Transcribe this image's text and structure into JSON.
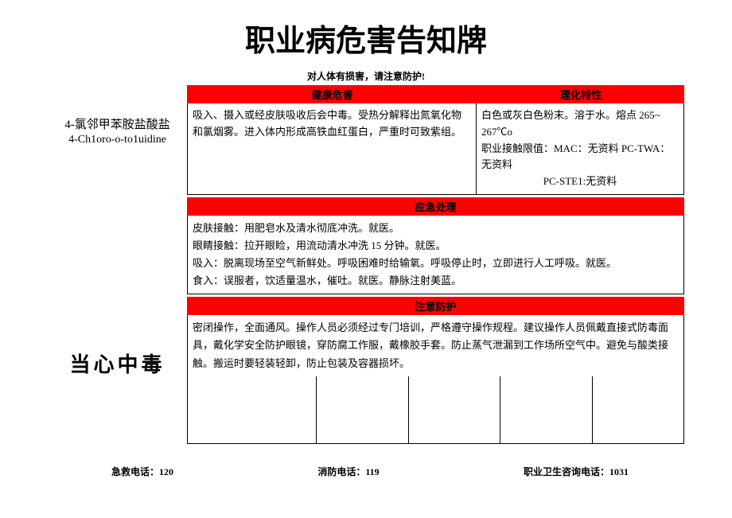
{
  "title": "职业病危害告知牌",
  "subtitle": "对人体有损害，请注意防护!",
  "chemical": {
    "name_cn": "4-氯邻甲苯胺盐酸盐",
    "name_en": "4-Ch1oro-o-to1uidine"
  },
  "headers": {
    "hazard": "健康危害",
    "properties": "理化特性",
    "emergency": "应急处理",
    "protection": "注意防护"
  },
  "hazard_text": "吸入、摄入或经皮肤吸收后会中毒。受热分解释出氮氧化物和氯烟雾。进入体内形成高铁血红蛋白，严重时可致紫组。",
  "properties_text": "白色或灰白色粉末。溶于水。熔点 265~ 267℃o",
  "limits_text": "职业接触限值：MAC：无资料 PC-TWA：无资料",
  "limits_text2": "PC-STE1:无资料",
  "emergency_lines": [
    "皮肤接触：用肥皂水及清水彻底冲洗。就医。",
    "眼睛接触：拉开眼睑，用流动清水冲洗 15 分钟。就医。",
    "吸入：脱离现场至空气新鲜处。呼吸困难时给输氧。呼吸停止时，立即进行人工呼吸。就医。",
    "食入：误服者，饮适量温水，催吐。就医。静脉注射美蓝。"
  ],
  "protection_text": "密闭操作，全面通风。操作人员必须经过专门培训，严格遵守操作规程。建议操作人员佩戴直接式防毒面具，戴化学安全防护眼镜，穿防腐工作服，戴橡胶手套。防止蒸气泄漏到工作场所空气中。避免与酸类接触。搬运时要轻装轻卸，防止包装及容器损坏。",
  "warning": "当心中毒",
  "phones": {
    "emergency": "急救电话：120",
    "fire": "消防电话：119",
    "health": "职业卫生咨询电话：1031"
  },
  "colors": {
    "header_bg": "#ff0000",
    "border": "#000000",
    "background": "#ffffff"
  }
}
